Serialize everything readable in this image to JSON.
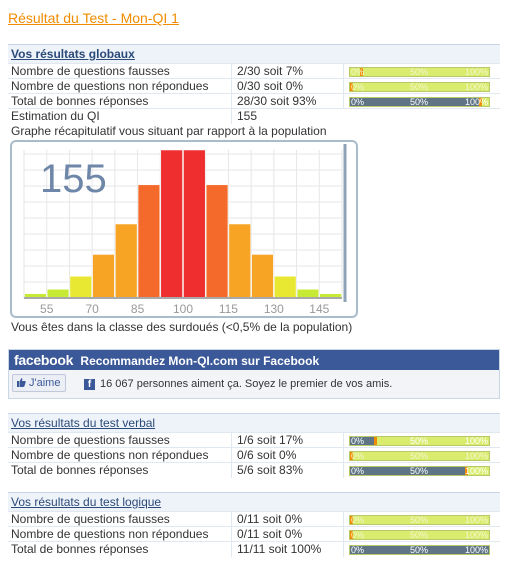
{
  "title": "Résultat du Test - Mon-QI 1",
  "global": {
    "header": "Vos résultats globaux",
    "rows": [
      {
        "label": "Nombre de questions fausses",
        "value": "2/30 soit 7%",
        "bar": 0.07,
        "kind": "tip"
      },
      {
        "label": "Nombre de questions non répondues",
        "value": "0/30 soit 0%",
        "bar": 0.0,
        "kind": "tip"
      },
      {
        "label": "Total de bonnes réponses",
        "value": "28/30 soit 93%",
        "bar": 0.93,
        "kind": "fill"
      },
      {
        "label": "Estimation du QI",
        "value": "155"
      }
    ],
    "graph_label": "Graphe récapitulatif vous situant par rapport à la population",
    "graph_score": "155",
    "graph_footer": "Vous êtes dans la classe des surdoués (<0,5% de la population)"
  },
  "bar_ticks": [
    "0%",
    "50%",
    "100%"
  ],
  "chart_data": {
    "type": "bar",
    "categories": [
      "55",
      "",
      "70",
      "",
      "85",
      "",
      "100",
      "",
      "115",
      "",
      "130",
      "",
      "145",
      ""
    ],
    "x_ticks": [
      "55",
      "70",
      "85",
      "100",
      "115",
      "130",
      "145"
    ],
    "values": [
      1,
      2,
      5,
      10,
      17,
      26,
      34,
      34,
      26,
      17,
      10,
      5,
      2,
      1
    ],
    "score": 155,
    "colors": {
      "low": "#c7ea35",
      "mid": "#f7a425",
      "high": "#ef2f2f"
    }
  },
  "facebook": {
    "logo": "facebook",
    "recommend": "Recommandez Mon-QI.com sur Facebook",
    "like": "J'aime",
    "count_text": "16 067 personnes aiment ça. Soyez le premier de vos amis."
  },
  "verbal": {
    "header": "Vos résultats du test verbal",
    "rows": [
      {
        "label": "Nombre de questions fausses",
        "value": "1/6 soit 17%",
        "bar": 0.17,
        "kind": "fill"
      },
      {
        "label": "Nombre de questions non répondues",
        "value": "0/6 soit 0%",
        "bar": 0.0,
        "kind": "tip"
      },
      {
        "label": "Total de bonnes réponses",
        "value": "5/6 soit 83%",
        "bar": 0.83,
        "kind": "fill"
      }
    ]
  },
  "logic": {
    "header": "Vos résultats du test logique",
    "rows": [
      {
        "label": "Nombre de questions fausses",
        "value": "0/11 soit 0%",
        "bar": 0.0,
        "kind": "tip"
      },
      {
        "label": "Nombre de questions non répondues",
        "value": "0/11 soit 0%",
        "bar": 0.0,
        "kind": "tip"
      },
      {
        "label": "Total de bonnes réponses",
        "value": "11/11 soit 100%",
        "bar": 1.0,
        "kind": "fill"
      }
    ]
  }
}
